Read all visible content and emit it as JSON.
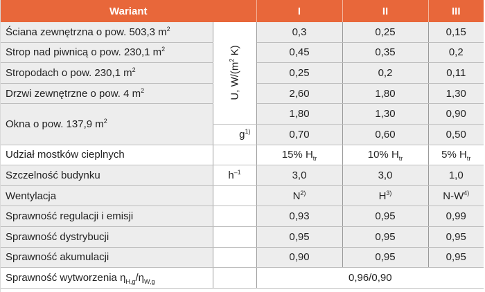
{
  "header": {
    "col0": "Wariant",
    "col2": "I",
    "col3": "II",
    "col4": "III"
  },
  "unit_u": "U, W/(m",
  "unit_u_sup": "2",
  "unit_u_end": " K)",
  "rows": {
    "r0": {
      "label": "Ściana zewnętrzna o pow. 503,3 m",
      "sup": "2",
      "v": [
        "0,3",
        "0,25",
        "0,15"
      ]
    },
    "r1": {
      "label": "Strop nad piwnicą o pow. 230,1 m",
      "sup": "2",
      "v": [
        "0,45",
        "0,35",
        "0,2"
      ]
    },
    "r2": {
      "label": "Stropodach o pow. 230,1 m",
      "sup": "2",
      "v": [
        "0,25",
        "0,2",
        "0,11"
      ]
    },
    "r3": {
      "label": "Drzwi zewnętrzne o pow. 4 m",
      "sup": "2",
      "v": [
        "2,60",
        "1,80",
        "1,30"
      ]
    },
    "r4": {
      "label": "Okna o pow. 137,9 m",
      "sup": "2",
      "v": [
        "1,80",
        "1,30",
        "0,90"
      ]
    },
    "r5": {
      "unit": "g",
      "unit_sup": "1)",
      "v": [
        "0,70",
        "0,60",
        "0,50"
      ]
    },
    "r6": {
      "label": "Udział mostków cieplnych",
      "v": [
        "15% H",
        "10% H",
        "5% H"
      ],
      "sub": "tr"
    },
    "r7": {
      "label": "Szczelność budynku",
      "unit": "h",
      "unit_sup": "–1",
      "v": [
        "3,0",
        "3,0",
        "1,0"
      ]
    },
    "r8": {
      "label": "Wentylacja",
      "v": [
        "N",
        "H",
        "N-W"
      ],
      "sups": [
        "2)",
        "3)",
        "4)"
      ]
    },
    "r9": {
      "label": "Sprawność regulacji i emisji",
      "v": [
        "0,93",
        "0,95",
        "0,99"
      ]
    },
    "r10": {
      "label": "Sprawność dystrybucji",
      "v": [
        "0,95",
        "0,95",
        "0,95"
      ]
    },
    "r11": {
      "label": "Sprawność akumulacji",
      "v": [
        "0,90",
        "0,95",
        "0,95"
      ]
    },
    "r12": {
      "label": "Sprawność wytworzenia η",
      "sub1": "H,g",
      "mid": "/η",
      "sub2": "W,g",
      "v": "0,96/0,90"
    }
  }
}
